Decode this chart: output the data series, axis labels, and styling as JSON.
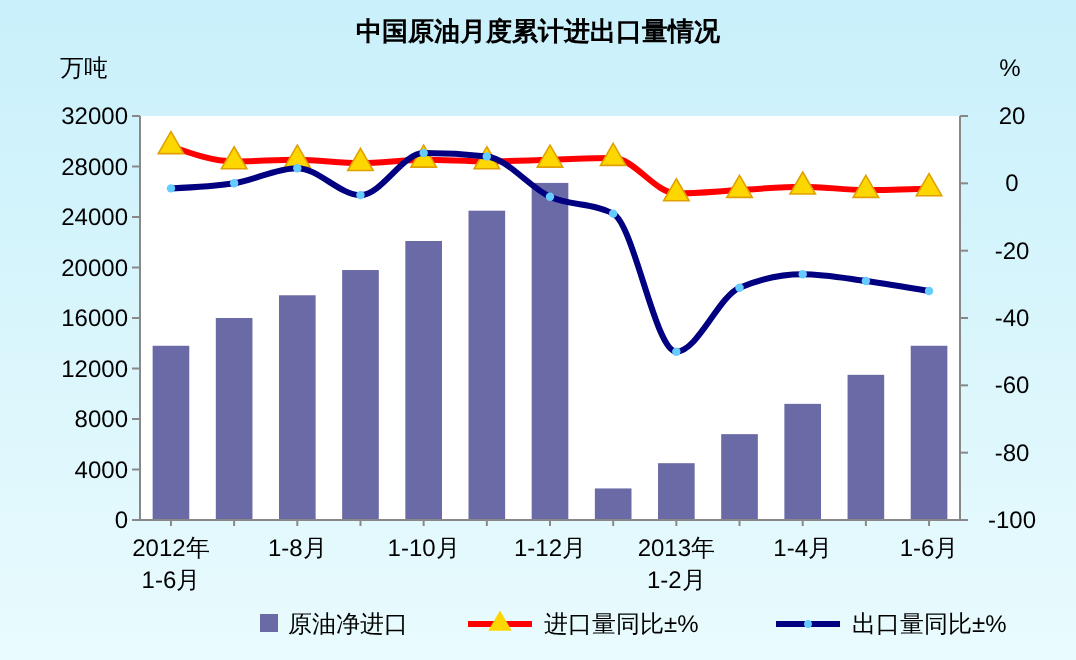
{
  "chart_data": {
    "type": "bar",
    "title": "中国原油月度累计进出口量情况",
    "ylabel": "万吨",
    "y2label": "%",
    "categories": [
      "2012年\n1-6月",
      null,
      "1-8月",
      null,
      "1-10月",
      null,
      "1-12月",
      null,
      "2013年\n1-2月",
      null,
      "1-4月",
      null,
      "1-6月"
    ],
    "series": [
      {
        "name": "原油净进口",
        "color": "#6a6aa6",
        "values": [
          13800,
          16000,
          17800,
          19800,
          22100,
          24500,
          26700,
          2500,
          4500,
          6800,
          9200,
          11500,
          13800
        ]
      },
      {
        "name": "进口量同比±%",
        "type": "line",
        "axis": "y2",
        "color": "#ff0000",
        "marker": "triangle",
        "values": [
          11,
          6.5,
          7,
          6,
          7,
          6.5,
          7,
          7.5,
          -3,
          -2,
          -1,
          -2,
          -1.5
        ]
      },
      {
        "name": "出口量同比±%",
        "type": "line",
        "axis": "y2",
        "color": "#000080",
        "marker": "circle",
        "values": [
          -1.5,
          0,
          4.5,
          -3.5,
          9,
          8,
          -4,
          -9,
          -50,
          -31,
          -27,
          -29,
          -32
        ]
      }
    ],
    "ylim": [
      0,
      32000
    ],
    "yticks": [
      0,
      4000,
      8000,
      12000,
      16000,
      20000,
      24000,
      28000,
      32000
    ],
    "y2lim": [
      -100,
      20
    ],
    "y2ticks": [
      -100,
      -80,
      -60,
      -40,
      -20,
      0,
      20
    ],
    "grid": false,
    "legend": "bottom"
  }
}
